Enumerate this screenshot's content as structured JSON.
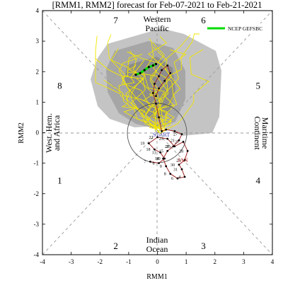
{
  "chart_data": {
    "type": "line",
    "title": "[RMM1, RMM2] forecast for Feb-07-2021 to Feb-21-2021",
    "xlabel": "RMM1",
    "ylabel": "RMM2",
    "xlim": [
      -4,
      4
    ],
    "ylim": [
      -4,
      4
    ],
    "xticks": [
      -4,
      -3,
      -2,
      -1,
      0,
      1,
      2,
      3,
      4
    ],
    "yticks": [
      -4,
      -3,
      -2,
      -1,
      0,
      1,
      2,
      3,
      4
    ],
    "phase_labels": [
      {
        "text": "1",
        "x": -3.4,
        "y": -1.55
      },
      {
        "text": "2",
        "x": -1.45,
        "y": -3.7
      },
      {
        "text": "3",
        "x": 1.6,
        "y": -3.7
      },
      {
        "text": "4",
        "x": 3.5,
        "y": -1.55
      },
      {
        "text": "5",
        "x": 3.5,
        "y": 1.55
      },
      {
        "text": "6",
        "x": 1.6,
        "y": 3.7
      },
      {
        "text": "7",
        "x": -1.45,
        "y": 3.7
      },
      {
        "text": "8",
        "x": -3.4,
        "y": 1.55
      }
    ],
    "region_labels": {
      "top": [
        "Western",
        "Pacific"
      ],
      "bottom": [
        "Indian",
        "Ocean"
      ],
      "left": [
        "West. Hem.",
        "and Africa"
      ],
      "right": [
        "Maritime",
        "Continent"
      ]
    },
    "legend": {
      "label": "NCEP GEFSBC",
      "color": "#00dd00",
      "placement": "top-right"
    },
    "markers": {
      "start": "START",
      "month": "JAN"
    },
    "observed": {
      "color": "#a02828",
      "x": [
        -0.25,
        0.05,
        0.25,
        0.1,
        -0.1,
        -0.3,
        0.0,
        0.35,
        0.6,
        0.9,
        1.05,
        0.95,
        0.75,
        0.85,
        0.95,
        0.7,
        0.45,
        0.3,
        0.2,
        0.35,
        0.55,
        0.75,
        0.85,
        0.6,
        0.3,
        0.15
      ],
      "y": [
        -0.95,
        -1.0,
        -0.85,
        -0.65,
        -0.55,
        -0.35,
        -0.15,
        -0.2,
        -0.45,
        -0.3,
        -0.6,
        -0.9,
        -1.05,
        -1.2,
        -1.45,
        -1.5,
        -1.35,
        -1.1,
        -0.85,
        -0.6,
        -0.45,
        -0.25,
        -0.05,
        0.05,
        0.1,
        0.05
      ],
      "day_labels": [
        "7",
        "8",
        "10",
        "13",
        "18",
        "19",
        "22",
        "23",
        "25",
        "27",
        "28",
        "29",
        "30",
        "31",
        "4",
        "6",
        "8",
        "9",
        "14",
        "15",
        "20",
        "21",
        "27"
      ]
    },
    "forecast": {
      "color": "#a02828",
      "x": [
        0.15,
        0.05,
        -0.05,
        -0.15,
        -0.1,
        0.05,
        0.15,
        0.35,
        0.45,
        0.25,
        0.05,
        -0.05
      ],
      "y": [
        0.05,
        0.5,
        0.95,
        1.3,
        1.6,
        1.85,
        2.05,
        2.2,
        1.95,
        1.7,
        1.45,
        1.2
      ]
    },
    "ensemble_mean": {
      "color": "#00dd00",
      "x": [
        -0.75,
        -0.6,
        -0.45,
        -0.3,
        -0.15,
        -0.05
      ],
      "y": [
        1.9,
        1.95,
        2.05,
        2.15,
        2.2,
        2.25
      ]
    }
  }
}
